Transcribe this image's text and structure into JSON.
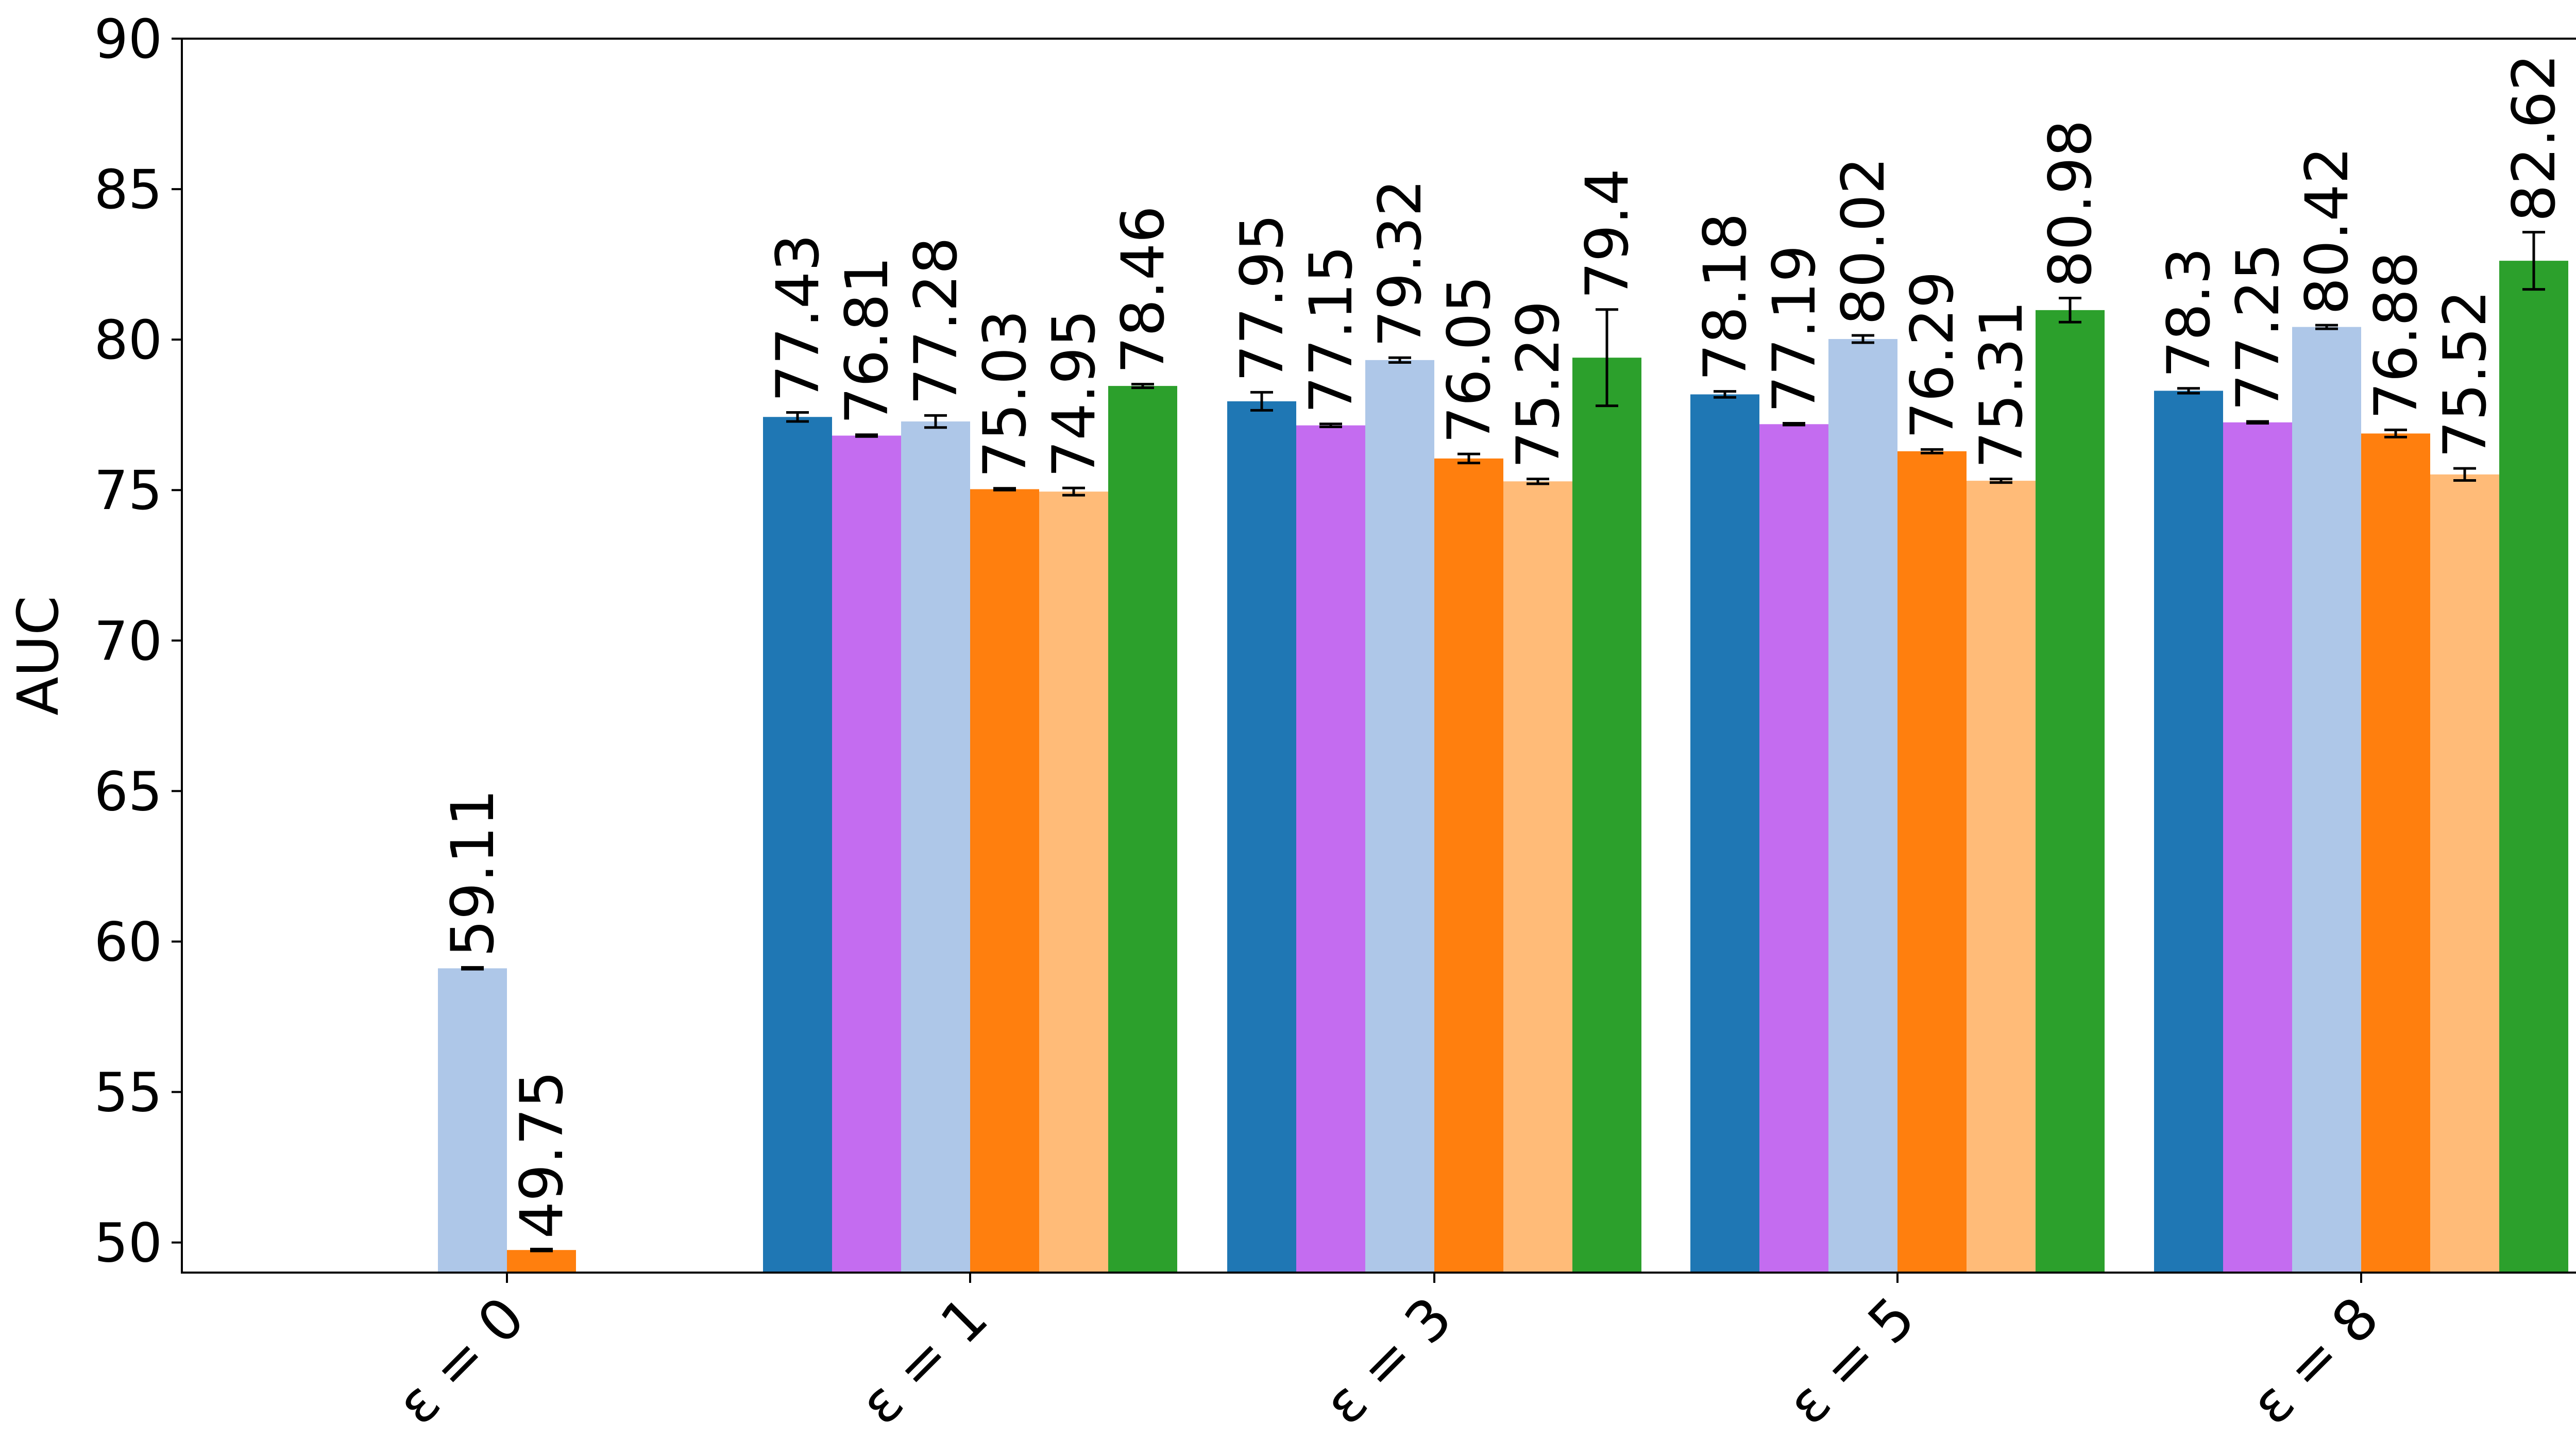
{
  "chart_data": {
    "type": "bar",
    "title": "",
    "xlabel": "",
    "ylabel": "AUC",
    "ylim": [
      49,
      90
    ],
    "y_ticks": [
      "50",
      "55",
      "60",
      "65",
      "70",
      "75",
      "80",
      "85",
      "90"
    ],
    "y_tick_values": [
      50,
      55,
      60,
      65,
      70,
      75,
      80,
      85,
      90
    ],
    "grid": false,
    "legend": "none",
    "categories": [
      "ε = 0",
      "ε = 1",
      "ε = 3",
      "ε = 5",
      "ε = 8"
    ],
    "series": [
      {
        "color": "#1f77b4",
        "values": [
          null,
          77.43,
          77.95,
          78.18,
          78.3
        ],
        "labels": [
          "",
          "77.43",
          "77.95",
          "78.18",
          "78.3"
        ],
        "errors": [
          null,
          0.15,
          0.3,
          0.1,
          0.08
        ]
      },
      {
        "color": "#c46cf0",
        "values": [
          null,
          76.81,
          77.15,
          77.19,
          77.25
        ],
        "labels": [
          "",
          "76.81",
          "77.15",
          "77.19",
          "77.25"
        ],
        "errors": [
          null,
          0.03,
          0.05,
          0.03,
          0.03
        ]
      },
      {
        "color": "#aec7e8",
        "values": [
          59.11,
          77.28,
          79.32,
          80.02,
          80.42
        ],
        "labels": [
          "59.11",
          "77.28",
          "79.32",
          "80.02",
          "80.42"
        ],
        "errors": [
          0.03,
          0.2,
          0.08,
          0.12,
          0.06
        ]
      },
      {
        "color": "#ff7f0e",
        "values": [
          49.75,
          75.03,
          76.05,
          76.29,
          76.88
        ],
        "labels": [
          "49.75",
          "75.03",
          "76.05",
          "76.29",
          "76.88"
        ],
        "errors": [
          0.03,
          0.03,
          0.15,
          0.06,
          0.12
        ]
      },
      {
        "color": "#ffbb78",
        "values": [
          null,
          74.95,
          75.29,
          75.31,
          75.52
        ],
        "labels": [
          "",
          "74.95",
          "75.29",
          "75.31",
          "75.52"
        ],
        "errors": [
          null,
          0.12,
          0.08,
          0.06,
          0.2
        ]
      },
      {
        "color": "#2ca02c",
        "values": [
          null,
          78.46,
          79.4,
          80.98,
          82.62
        ],
        "labels": [
          "",
          "78.46",
          "79.4",
          "80.98",
          "82.62"
        ],
        "errors": [
          null,
          0.06,
          1.6,
          0.4,
          0.95
        ]
      }
    ]
  }
}
